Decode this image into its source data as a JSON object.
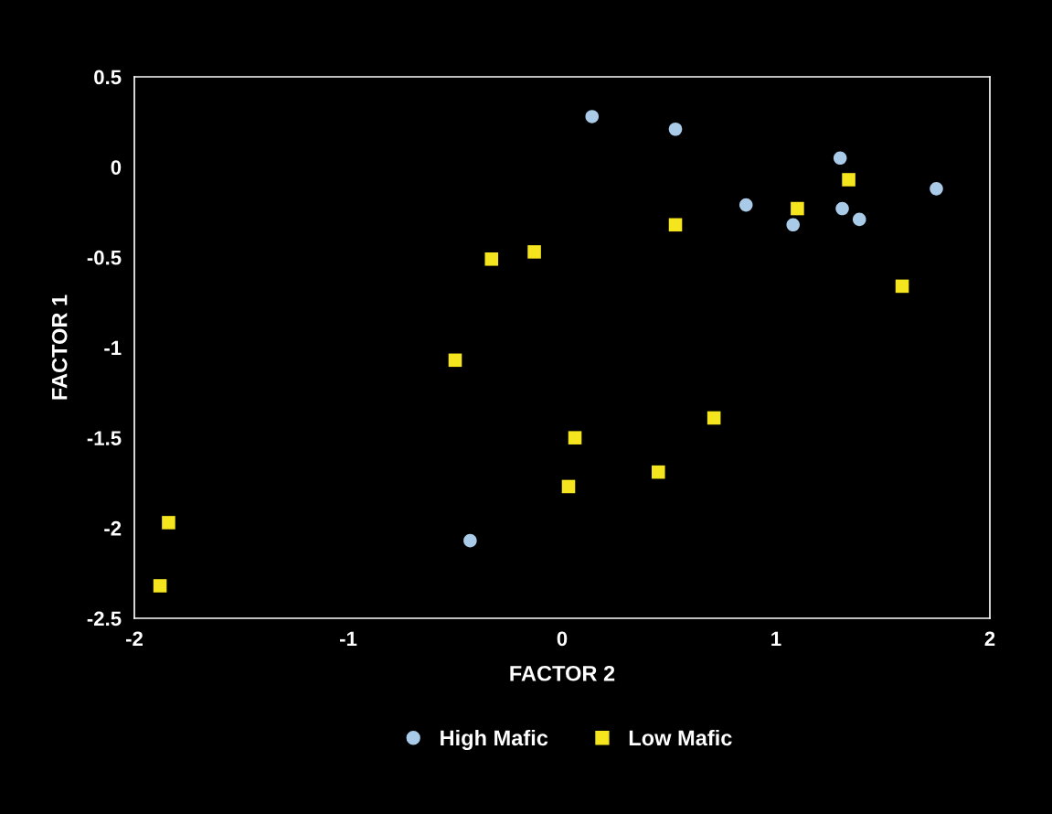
{
  "chart_data": {
    "type": "scatter",
    "xlabel": "FACTOR 2",
    "ylabel": "FACTOR 1",
    "xlim": [
      -2,
      2
    ],
    "xticks": [
      -2,
      -1,
      0,
      1,
      2
    ],
    "ylim": [
      -2.5,
      0.5
    ],
    "yticks": [
      -2.5,
      -2,
      -1.5,
      -1,
      -0.5,
      0,
      0.5
    ],
    "grid": false,
    "legend": "bottom",
    "series": [
      {
        "name": "High Mafic",
        "color": "#a9cbe8",
        "marker": "circle",
        "x": [
          0.14,
          0.53,
          1.3,
          1.75,
          0.86,
          1.31,
          1.08,
          1.39,
          -0.43
        ],
        "values": [
          0.28,
          0.21,
          0.05,
          -0.12,
          -0.21,
          -0.23,
          -0.32,
          -0.29,
          -2.07
        ]
      },
      {
        "name": "Low Mafic",
        "color": "#f5e51e",
        "marker": "square",
        "x": [
          1.34,
          1.1,
          0.53,
          1.59,
          -0.13,
          -0.33,
          -0.5,
          0.06,
          0.71,
          0.45,
          0.03,
          -1.84,
          -1.88
        ],
        "values": [
          -0.07,
          -0.23,
          -0.32,
          -0.66,
          -0.47,
          -0.51,
          -1.07,
          -1.5,
          -1.39,
          -1.69,
          -1.77,
          -1.97,
          -2.32
        ]
      }
    ]
  }
}
